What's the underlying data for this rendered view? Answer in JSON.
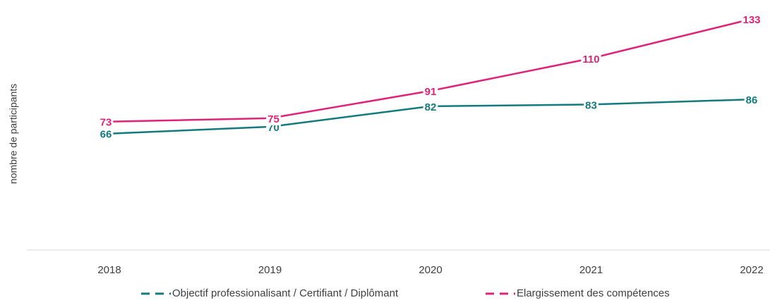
{
  "chart_data": {
    "type": "line",
    "y_label": "nombre de participants",
    "categories": [
      "2018",
      "2019",
      "2020",
      "2021",
      "2022"
    ],
    "series": [
      {
        "name": "Objectif professionalisant / Certifiant / Diplômant",
        "color": "#137a7f",
        "values": [
          66,
          70,
          82,
          83,
          86
        ]
      },
      {
        "name": "Elargissement des compétences",
        "color": "#e0237a",
        "values": [
          73,
          75,
          91,
          110,
          133
        ]
      }
    ],
    "ylim": [
      0,
      140
    ],
    "legend": "bottom"
  }
}
